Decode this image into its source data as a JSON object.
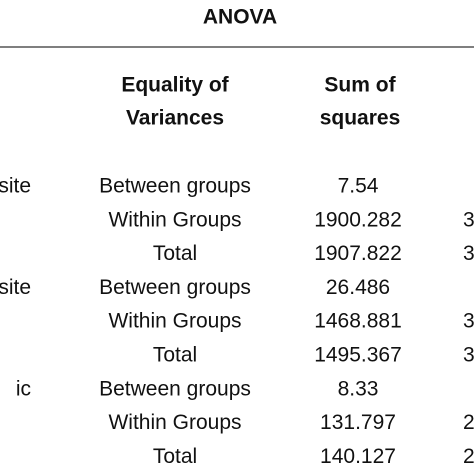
{
  "table": {
    "title": "ANOVA",
    "header": [
      "Equality of",
      "Variances",
      "Sum of",
      "squares"
    ],
    "rows": [
      [
        "site",
        "Between groups",
        "7.54",
        ""
      ],
      [
        null,
        "Within Groups",
        "1900.282",
        "3"
      ],
      [
        null,
        "Total",
        "1907.822",
        "3"
      ],
      [
        "site",
        "Between groups",
        "26.486",
        ""
      ],
      [
        null,
        "Within Groups",
        "1468.881",
        "3"
      ],
      [
        null,
        "Total",
        "1495.367",
        "3"
      ],
      [
        "ic",
        "Between groups",
        "8.33",
        ""
      ],
      [
        null,
        "Within Groups",
        "131.797",
        "2"
      ],
      [
        null,
        "Total",
        "140.127",
        "2"
      ]
    ]
  }
}
